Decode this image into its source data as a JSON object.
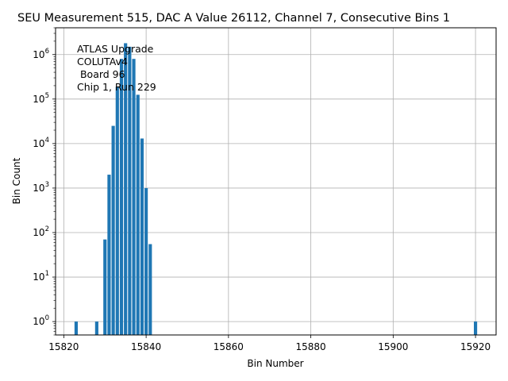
{
  "chart_data": {
    "type": "bar",
    "title": "SEU Measurement 515, DAC A Value 26112, Channel 7, Consecutive Bins 1",
    "xlabel": "Bin Number",
    "ylabel": "Bin Count",
    "xlim": [
      15818,
      15925
    ],
    "ylim": [
      0.5,
      4000000
    ],
    "yscale": "log",
    "grid": true,
    "bar_color": "#1f77b4",
    "x_ticks": [
      15820,
      15840,
      15860,
      15880,
      15900,
      15920
    ],
    "x_tick_labels": [
      "15820",
      "15840",
      "15860",
      "15880",
      "15900",
      "15920"
    ],
    "y_ticks": [
      {
        "base": "10",
        "exp": "0",
        "value": 1
      },
      {
        "base": "10",
        "exp": "1",
        "value": 10
      },
      {
        "base": "10",
        "exp": "2",
        "value": 100
      },
      {
        "base": "10",
        "exp": "3",
        "value": 1000
      },
      {
        "base": "10",
        "exp": "4",
        "value": 10000
      },
      {
        "base": "10",
        "exp": "5",
        "value": 100000
      },
      {
        "base": "10",
        "exp": "6",
        "value": 1000000
      }
    ],
    "annotation": [
      "ATLAS Upgrade",
      "COLUTAv4",
      " Board 96",
      "Chip 1, Run 229"
    ],
    "bars": [
      {
        "x": 15823,
        "y": 1
      },
      {
        "x": 15828,
        "y": 1
      },
      {
        "x": 15830,
        "y": 70
      },
      {
        "x": 15831,
        "y": 2000
      },
      {
        "x": 15832,
        "y": 25000
      },
      {
        "x": 15833,
        "y": 190000
      },
      {
        "x": 15834,
        "y": 800000
      },
      {
        "x": 15835,
        "y": 1800000
      },
      {
        "x": 15836,
        "y": 1500000
      },
      {
        "x": 15837,
        "y": 800000
      },
      {
        "x": 15838,
        "y": 125000
      },
      {
        "x": 15839,
        "y": 13000
      },
      {
        "x": 15840,
        "y": 1000
      },
      {
        "x": 15841,
        "y": 55
      },
      {
        "x": 15920,
        "y": 1
      }
    ]
  }
}
